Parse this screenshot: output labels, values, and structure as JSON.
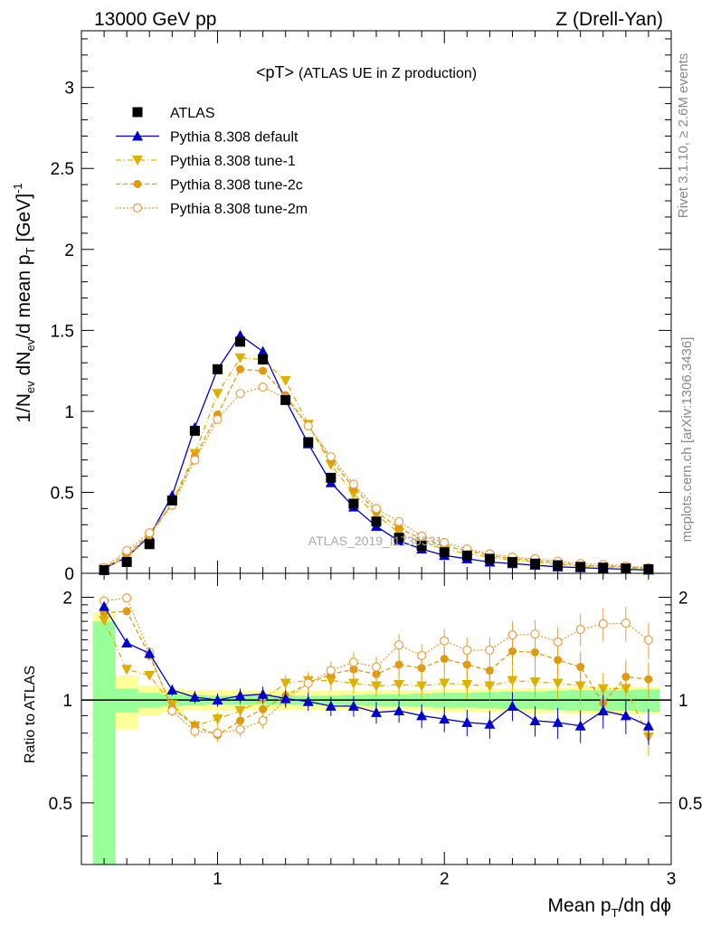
{
  "header": {
    "left": "13000 GeV pp",
    "right": "Z (Drell-Yan)"
  },
  "side_labels": {
    "rivet": "Rivet 3.1.10, ≥ 2.6M events",
    "mcplots": "mcplots.cern.ch [arXiv:1306.3436]"
  },
  "watermark": "ATLAS_2019_I1736531",
  "colors": {
    "atlas": "#000000",
    "default": "#0000cc",
    "tune1": "#e0b000",
    "tune2c": "#e09a10",
    "tune2m": "#e8a040",
    "band_stat": "#99ff99",
    "band_total": "#ffff99"
  },
  "chart_data": [
    {
      "type": "scatter",
      "title_main": "<pT>",
      "title_sub": "(ATLAS UE in Z production)",
      "ylabel": "1/N_ev dN_ev/d mean p_T [GeV]^-1",
      "xlim": [
        0.4,
        3.0
      ],
      "ylim": [
        0,
        3.35
      ],
      "y_ticks": [
        "0",
        "0.5",
        "1",
        "1.5",
        "2",
        "2.5",
        "3"
      ],
      "x": [
        0.5,
        0.6,
        0.7,
        0.8,
        0.9,
        1.0,
        1.1,
        1.2,
        1.3,
        1.4,
        1.5,
        1.6,
        1.7,
        1.8,
        1.9,
        2.0,
        2.1,
        2.2,
        2.3,
        2.4,
        2.5,
        2.6,
        2.7,
        2.8,
        2.9
      ],
      "series": [
        {
          "name": "ATLAS",
          "marker": "square",
          "values": [
            0.02,
            0.07,
            0.18,
            0.45,
            0.88,
            1.26,
            1.43,
            1.32,
            1.07,
            0.81,
            0.59,
            0.43,
            0.32,
            0.22,
            0.17,
            0.13,
            0.11,
            0.09,
            0.07,
            0.06,
            0.05,
            0.04,
            0.035,
            0.03,
            0.025
          ]
        },
        {
          "name": "Pythia 8.308 default",
          "marker": "triangle-up",
          "values": [
            0.03,
            0.1,
            0.23,
            0.48,
            0.9,
            1.26,
            1.47,
            1.37,
            1.07,
            0.8,
            0.56,
            0.41,
            0.29,
            0.2,
            0.15,
            0.11,
            0.09,
            0.07,
            0.06,
            0.05,
            0.04,
            0.035,
            0.03,
            0.025,
            0.02
          ]
        },
        {
          "name": "Pythia 8.308 tune-1",
          "marker": "triangle-down",
          "values": [
            0.03,
            0.1,
            0.22,
            0.44,
            0.74,
            1.11,
            1.33,
            1.32,
            1.19,
            0.92,
            0.67,
            0.49,
            0.36,
            0.25,
            0.19,
            0.15,
            0.12,
            0.1,
            0.08,
            0.07,
            0.055,
            0.045,
            0.04,
            0.035,
            0.025
          ]
        },
        {
          "name": "Pythia 8.308 tune-2c",
          "marker": "circle",
          "values": [
            0.03,
            0.12,
            0.24,
            0.43,
            0.72,
            0.98,
            1.26,
            1.25,
            1.1,
            0.91,
            0.7,
            0.53,
            0.38,
            0.28,
            0.21,
            0.17,
            0.14,
            0.11,
            0.09,
            0.08,
            0.065,
            0.05,
            0.045,
            0.04,
            0.03
          ]
        },
        {
          "name": "Pythia 8.308 tune-2m",
          "marker": "circle-open",
          "values": [
            0.035,
            0.14,
            0.25,
            0.42,
            0.7,
            0.95,
            1.11,
            1.15,
            1.08,
            0.91,
            0.72,
            0.55,
            0.4,
            0.32,
            0.23,
            0.19,
            0.15,
            0.12,
            0.1,
            0.09,
            0.075,
            0.06,
            0.055,
            0.045,
            0.035
          ]
        }
      ]
    },
    {
      "type": "scatter",
      "ylabel": "Ratio to ATLAS",
      "xlabel": "Mean p_T/dη dϕ",
      "xlim": [
        0.4,
        3.0
      ],
      "ylim": [
        0.33,
        2.35
      ],
      "log_y": true,
      "y_ticks": [
        "0.5",
        "1",
        "2"
      ],
      "x_ticks": [
        "1",
        "2",
        "3"
      ],
      "reference": 1,
      "x": [
        0.5,
        0.6,
        0.7,
        0.8,
        0.9,
        1.0,
        1.1,
        1.2,
        1.3,
        1.4,
        1.5,
        1.6,
        1.7,
        1.8,
        1.9,
        2.0,
        2.1,
        2.2,
        2.3,
        2.4,
        2.5,
        2.6,
        2.7,
        2.8,
        2.9
      ],
      "band_edges": [
        0.45,
        0.55,
        0.65,
        0.75,
        0.85,
        0.95,
        1.05,
        1.15,
        1.25,
        1.35,
        1.45,
        1.55,
        1.65,
        1.75,
        1.85,
        1.95,
        2.05,
        2.15,
        2.25,
        2.35,
        2.45,
        2.55,
        2.65,
        2.75,
        2.85,
        2.95
      ],
      "band_stat_half": [
        0.7,
        0.08,
        0.05,
        0.04,
        0.035,
        0.03,
        0.03,
        0.03,
        0.03,
        0.03,
        0.03,
        0.035,
        0.04,
        0.04,
        0.045,
        0.05,
        0.05,
        0.055,
        0.06,
        0.06,
        0.065,
        0.07,
        0.07,
        0.07,
        0.075
      ],
      "band_total_half": [
        0.8,
        0.18,
        0.1,
        0.08,
        0.07,
        0.07,
        0.065,
        0.065,
        0.065,
        0.065,
        0.065,
        0.065,
        0.07,
        0.07,
        0.07,
        0.075,
        0.075,
        0.08,
        0.08,
        0.085,
        0.085,
        0.09,
        0.09,
        0.09,
        0.09
      ],
      "series": [
        {
          "name": "Pythia 8.308 default",
          "values": [
            1.88,
            1.47,
            1.37,
            1.07,
            1.02,
            1.0,
            1.03,
            1.04,
            1.01,
            0.99,
            0.96,
            0.96,
            0.92,
            0.93,
            0.9,
            0.88,
            0.86,
            0.85,
            0.96,
            0.87,
            0.86,
            0.84,
            0.93,
            0.9,
            0.84
          ]
        },
        {
          "name": "Pythia 8.308 tune-1",
          "values": [
            1.71,
            1.23,
            1.18,
            0.97,
            0.84,
            0.88,
            0.93,
            1.0,
            1.12,
            1.14,
            1.14,
            1.12,
            1.1,
            1.11,
            1.1,
            1.12,
            1.11,
            1.1,
            1.14,
            1.13,
            1.12,
            1.1,
            1.08,
            1.08,
            0.78
          ]
        },
        {
          "name": "Pythia 8.308 tune-2c",
          "values": [
            1.8,
            1.82,
            1.35,
            0.95,
            0.84,
            0.79,
            0.87,
            0.94,
            1.03,
            1.12,
            1.19,
            1.23,
            1.19,
            1.27,
            1.24,
            1.32,
            1.27,
            1.22,
            1.39,
            1.38,
            1.31,
            1.25,
            0.98,
            1.17,
            1.15
          ]
        },
        {
          "name": "Pythia 8.308 tune-2m",
          "values": [
            1.95,
            1.99,
            1.38,
            0.93,
            0.81,
            0.8,
            0.82,
            0.87,
            1.0,
            1.12,
            1.22,
            1.29,
            1.25,
            1.45,
            1.35,
            1.49,
            1.4,
            1.4,
            1.55,
            1.56,
            1.48,
            1.61,
            1.67,
            1.68,
            1.5
          ]
        }
      ]
    }
  ]
}
